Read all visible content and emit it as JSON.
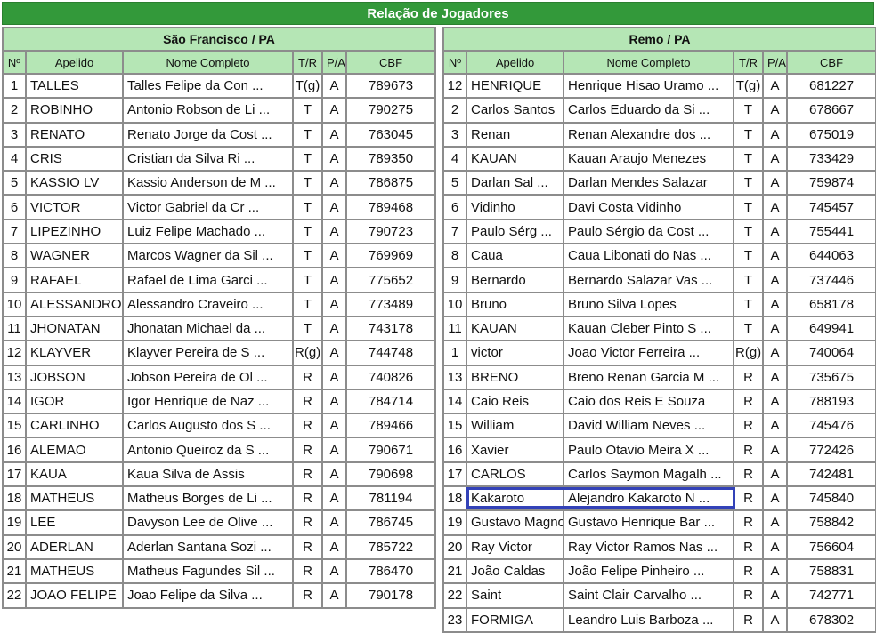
{
  "title": "Relação de Jogadores",
  "columns": [
    "Nº",
    "Apelido",
    "Nome Completo",
    "T/R",
    "P/A",
    "CBF"
  ],
  "colors": {
    "title_bar": "#33993a",
    "header_bg": "#b5e6b5",
    "highlight": "#3342b8"
  },
  "teams": [
    {
      "name": "São Francisco / PA",
      "players": [
        [
          "1",
          "TALLES",
          "Talles Felipe da Con ...",
          "T(g)",
          "A",
          "789673"
        ],
        [
          "2",
          "ROBINHO",
          "Antonio Robson de Li ...",
          "T",
          "A",
          "790275"
        ],
        [
          "3",
          "RENATO",
          "Renato Jorge da Cost ...",
          "T",
          "A",
          "763045"
        ],
        [
          "4",
          "CRIS",
          "Cristian da Silva Ri ...",
          "T",
          "A",
          "789350"
        ],
        [
          "5",
          "KASSIO LV",
          "Kassio Anderson de M ...",
          "T",
          "A",
          "786875"
        ],
        [
          "6",
          "VICTOR",
          "Victor Gabriel da Cr ...",
          "T",
          "A",
          "789468"
        ],
        [
          "7",
          "LIPEZINHO",
          "Luiz Felipe Machado  ...",
          "T",
          "A",
          "790723"
        ],
        [
          "8",
          "WAGNER",
          "Marcos Wagner da Sil ...",
          "T",
          "A",
          "769969"
        ],
        [
          "9",
          "RAFAEL",
          "Rafael de Lima Garci ...",
          "T",
          "A",
          "775652"
        ],
        [
          "10",
          "ALESSANDRO",
          "Alessandro Craveiro  ...",
          "T",
          "A",
          "773489"
        ],
        [
          "11",
          "JHONATAN",
          "Jhonatan Michael da  ...",
          "T",
          "A",
          "743178"
        ],
        [
          "12",
          "KLAYVER",
          "Klayver Pereira de S ...",
          "R(g)",
          "A",
          "744748"
        ],
        [
          "13",
          "JOBSON",
          "Jobson Pereira de Ol ...",
          "R",
          "A",
          "740826"
        ],
        [
          "14",
          "IGOR",
          "Igor Henrique de Naz ...",
          "R",
          "A",
          "784714"
        ],
        [
          "15",
          "CARLINHO",
          "Carlos Augusto dos S ...",
          "R",
          "A",
          "789466"
        ],
        [
          "16",
          "ALEMAO",
          "Antonio Queiroz da S ...",
          "R",
          "A",
          "790671"
        ],
        [
          "17",
          "KAUA",
          "Kaua Silva de Assis",
          "R",
          "A",
          "790698"
        ],
        [
          "18",
          "MATHEUS",
          "Matheus Borges de Li ...",
          "R",
          "A",
          "781194"
        ],
        [
          "19",
          "LEE",
          "Davyson Lee de Olive ...",
          "R",
          "A",
          "786745"
        ],
        [
          "20",
          "ADERLAN",
          "Aderlan Santana Sozi ...",
          "R",
          "A",
          "785722"
        ],
        [
          "21",
          "MATHEUS",
          "Matheus Fagundes Sil ...",
          "R",
          "A",
          "786470"
        ],
        [
          "22",
          "JOAO FELIPE",
          "Joao Felipe da Silva ...",
          "R",
          "A",
          "790178"
        ]
      ]
    },
    {
      "name": "Remo / PA",
      "players": [
        [
          "12",
          "HENRIQUE",
          "Henrique Hisao Uramo ...",
          "T(g)",
          "A",
          "681227"
        ],
        [
          "2",
          "Carlos Santos",
          "Carlos Eduardo da Si ...",
          "T",
          "A",
          "678667"
        ],
        [
          "3",
          "Renan",
          "Renan Alexandre dos  ...",
          "T",
          "A",
          "675019"
        ],
        [
          "4",
          "KAUAN",
          "Kauan Araujo Menezes",
          "T",
          "A",
          "733429"
        ],
        [
          "5",
          "Darlan Sal ...",
          "Darlan Mendes Salazar",
          "T",
          "A",
          "759874"
        ],
        [
          "6",
          "Vidinho",
          "Davi Costa Vidinho",
          "T",
          "A",
          "745457"
        ],
        [
          "7",
          "Paulo Sérg ...",
          "Paulo Sérgio da Cost ...",
          "T",
          "A",
          "755441"
        ],
        [
          "8",
          "Caua",
          "Caua Libonati do Nas ...",
          "T",
          "A",
          "644063"
        ],
        [
          "9",
          "Bernardo",
          "Bernardo Salazar Vas ...",
          "T",
          "A",
          "737446"
        ],
        [
          "10",
          "Bruno",
          "Bruno Silva Lopes",
          "T",
          "A",
          "658178"
        ],
        [
          "11",
          "KAUAN",
          "Kauan Cleber Pinto S ...",
          "T",
          "A",
          "649941"
        ],
        [
          "1",
          "victor",
          "Joao Victor Ferreira ...",
          "R(g)",
          "A",
          "740064"
        ],
        [
          "13",
          "BRENO",
          "Breno Renan Garcia M ...",
          "R",
          "A",
          "735675"
        ],
        [
          "14",
          "Caio Reis",
          "Caio dos Reis E Souza",
          "R",
          "A",
          "788193"
        ],
        [
          "15",
          "William",
          "David William Neves  ...",
          "R",
          "A",
          "745476"
        ],
        [
          "16",
          "Xavier",
          "Paulo Otavio Meira X ...",
          "R",
          "A",
          "772426"
        ],
        [
          "17",
          "CARLOS",
          "Carlos Saymon Magalh ...",
          "R",
          "A",
          "742481"
        ],
        [
          "18",
          "Kakaroto",
          "Alejandro Kakaroto N ...",
          "R",
          "A",
          "745840"
        ],
        [
          "19",
          "Gustavo Magno",
          "Gustavo Henrique Bar ...",
          "R",
          "A",
          "758842"
        ],
        [
          "20",
          "Ray Victor",
          "Ray Victor Ramos Nas ...",
          "R",
          "A",
          "756604"
        ],
        [
          "21",
          "João Caldas",
          "João Felipe Pinheiro ...",
          "R",
          "A",
          "758831"
        ],
        [
          "22",
          "Saint",
          "Saint Clair Carvalho ...",
          "R",
          "A",
          "742771"
        ],
        [
          "23",
          "FORMIGA",
          "Leandro Luis Barboza ...",
          "R",
          "A",
          "678302"
        ]
      ]
    }
  ]
}
